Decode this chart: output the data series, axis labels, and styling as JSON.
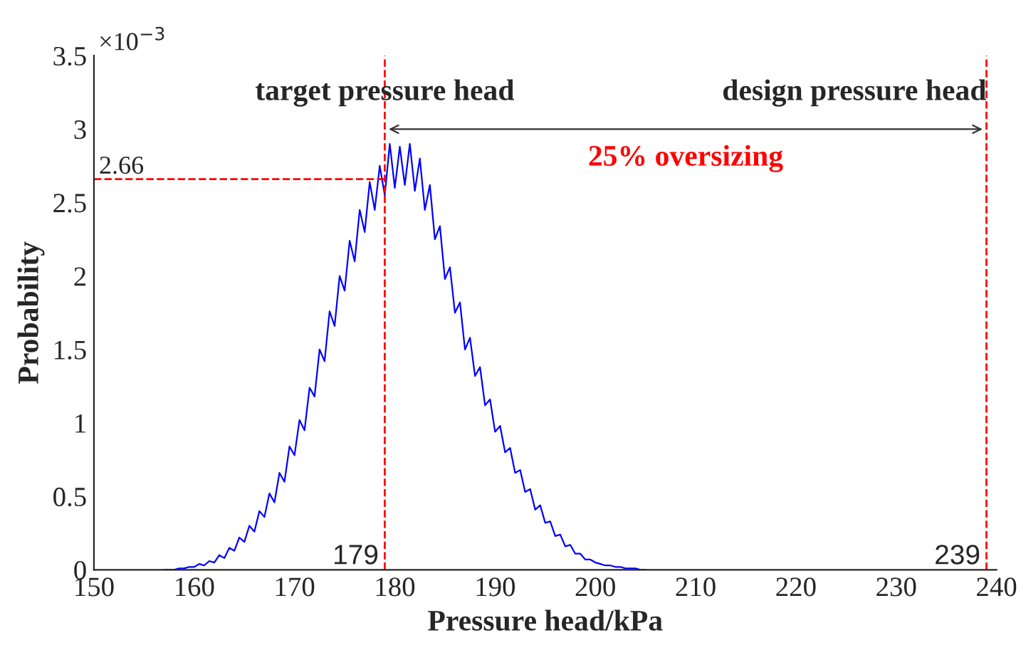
{
  "chart_data": {
    "type": "line",
    "xlabel": "Pressure head/kPa",
    "ylabel": "Probability",
    "x": [
      157,
      157.5,
      158,
      158.5,
      159,
      159.5,
      160,
      160.5,
      161,
      161.5,
      162,
      162.5,
      163,
      163.5,
      164,
      164.5,
      165,
      165.5,
      166,
      166.5,
      167,
      167.5,
      168,
      168.5,
      169,
      169.5,
      170,
      170.5,
      171,
      171.5,
      172,
      172.5,
      173,
      173.5,
      174,
      174.5,
      175,
      175.5,
      176,
      176.5,
      177,
      177.5,
      178,
      178.5,
      179,
      179.5,
      180,
      180.5,
      181,
      181.5,
      182,
      182.5,
      183,
      183.5,
      184,
      184.5,
      185,
      185.5,
      186,
      186.5,
      187,
      187.5,
      188,
      188.5,
      189,
      189.5,
      190,
      190.5,
      191,
      191.5,
      192,
      192.5,
      193,
      193.5,
      194,
      194.5,
      195,
      195.5,
      196,
      196.5,
      197,
      197.5,
      198,
      198.5,
      199,
      199.5,
      200,
      200.5,
      201,
      201.5,
      202,
      202.5,
      203,
      203.5,
      204,
      204.5,
      205
    ],
    "series": [
      {
        "color": "#0000ff",
        "values": [
          0,
          0,
          0,
          0.01,
          0.01,
          0.02,
          0.02,
          0.04,
          0.03,
          0.06,
          0.05,
          0.1,
          0.08,
          0.15,
          0.13,
          0.22,
          0.19,
          0.3,
          0.26,
          0.4,
          0.36,
          0.52,
          0.46,
          0.66,
          0.6,
          0.84,
          0.78,
          1.02,
          0.95,
          1.24,
          1.18,
          1.5,
          1.42,
          1.76,
          1.66,
          2.0,
          1.9,
          2.24,
          2.1,
          2.45,
          2.3,
          2.64,
          2.45,
          2.75,
          2.55,
          2.9,
          2.6,
          2.88,
          2.62,
          2.9,
          2.58,
          2.8,
          2.45,
          2.62,
          2.25,
          2.34,
          1.98,
          2.06,
          1.75,
          1.82,
          1.5,
          1.58,
          1.32,
          1.38,
          1.12,
          1.16,
          0.94,
          0.98,
          0.8,
          0.83,
          0.66,
          0.68,
          0.53,
          0.55,
          0.41,
          0.44,
          0.32,
          0.33,
          0.23,
          0.24,
          0.16,
          0.17,
          0.11,
          0.11,
          0.07,
          0.07,
          0.05,
          0.04,
          0.03,
          0.03,
          0.02,
          0.02,
          0.01,
          0.01,
          0.01,
          0,
          0
        ]
      }
    ],
    "xlim": [
      150,
      240
    ],
    "xticks": [
      150,
      160,
      170,
      180,
      190,
      200,
      210,
      220,
      230,
      240
    ],
    "ylim": [
      0,
      3.5
    ],
    "yticks": [
      0,
      0.5,
      1,
      1.5,
      2,
      2.5,
      3,
      3.5
    ],
    "ref_lines": [
      {
        "axis": "x",
        "value": 179,
        "label": "179",
        "color": "#ff0000",
        "line_style": "dashed"
      },
      {
        "axis": "x",
        "value": 239,
        "label": "239",
        "color": "#ff0000",
        "line_style": "dashed"
      },
      {
        "axis": "y",
        "value": 2.66,
        "label": "2.66",
        "color": "#ff0000",
        "line_style": "dashed"
      }
    ],
    "annotations": [
      "×10$^{−3}$",
      {
        "text": "target pressure head",
        "x": 179
      },
      {
        "text": "design pressure head",
        "x": 239
      },
      "25% oversizing"
    ],
    "grid": false,
    "legend": false,
    "marker": "none",
    "line_style": "solid"
  }
}
